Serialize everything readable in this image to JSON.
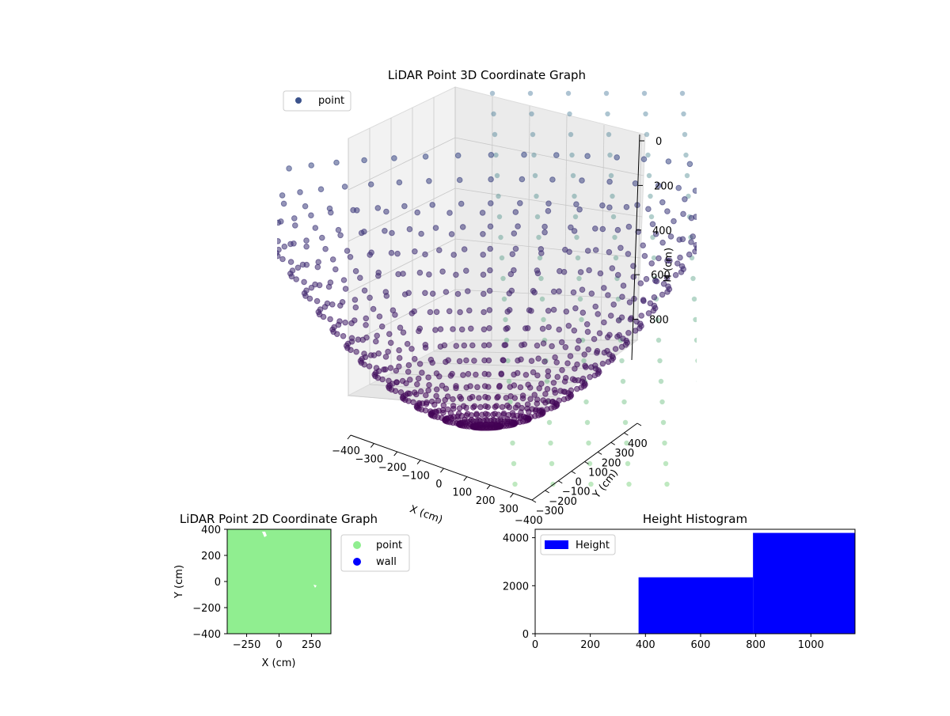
{
  "chart_data": [
    {
      "type": "scatter",
      "title": "LiDAR Point 3D Coordinate Graph",
      "xlabel": "X (cm)",
      "ylabel": "Y (cm)",
      "zlabel": "H (cm)",
      "x_ticks": [
        "−400",
        "−300",
        "−200",
        "−100",
        "0",
        "100",
        "200",
        "300"
      ],
      "y_ticks": [
        "−400",
        "−300",
        "−200",
        "−100",
        "0",
        "100",
        "200",
        "300",
        "400"
      ],
      "z_ticks": [
        "0",
        "200",
        "400",
        "600",
        "800"
      ],
      "xlim": [
        -400,
        400
      ],
      "ylim": [
        -400,
        400
      ],
      "zlim": [
        0,
        1000
      ],
      "z_axis_inverted": true,
      "grid": true,
      "legend": [
        {
          "name": "point",
          "color": "#3b528b"
        }
      ],
      "legend_position": "top-left",
      "colors": {
        "near": "#440154",
        "mid": "#3b528b",
        "far": "#5ec962"
      }
    },
    {
      "type": "scatter",
      "title": "LiDAR Point 2D Coordinate Graph",
      "xlabel": "X (cm)",
      "ylabel": "Y (cm)",
      "x_ticks": [
        "−250",
        "0",
        "250"
      ],
      "y_ticks": [
        "400",
        "200",
        "0",
        "−200",
        "−400"
      ],
      "xlim": [
        -400,
        400
      ],
      "ylim": [
        -400,
        400
      ],
      "legend": [
        {
          "name": "point",
          "color": "#90ee90"
        },
        {
          "name": "wall",
          "color": "#0000ff"
        }
      ],
      "legend_position": "outside-right"
    },
    {
      "type": "bar",
      "title": "Height Histogram",
      "x_ticks": [
        "0",
        "200",
        "400",
        "600",
        "800",
        "1000"
      ],
      "y_ticks": [
        "0",
        "2000",
        "4000"
      ],
      "xlim": [
        0,
        1160
      ],
      "ylim": [
        0,
        4350
      ],
      "bins": [
        {
          "x0": 0,
          "x1": 375,
          "count": 0
        },
        {
          "x0": 375,
          "x1": 790,
          "count": 2350
        },
        {
          "x0": 790,
          "x1": 1160,
          "count": 4200
        }
      ],
      "legend": [
        {
          "name": "Height",
          "color": "#0000ff"
        }
      ],
      "legend_position": "top-left"
    }
  ]
}
